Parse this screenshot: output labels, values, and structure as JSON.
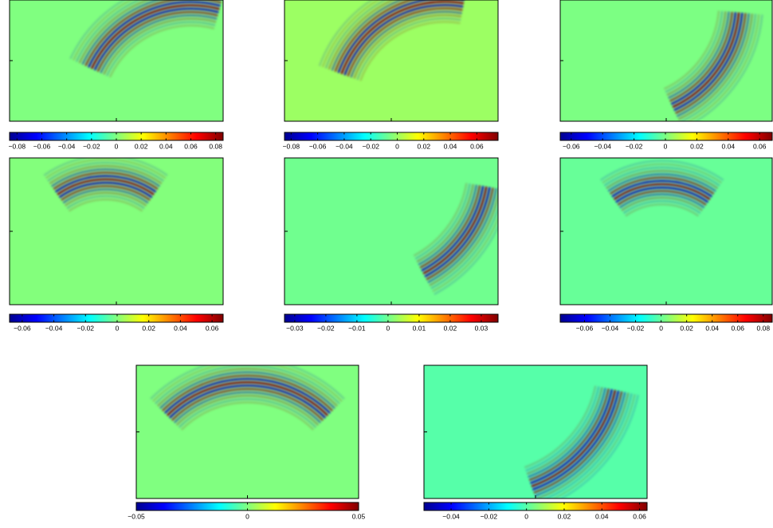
{
  "charts": [
    {
      "type": "heatmap",
      "clim": [
        -0.086,
        0.086
      ],
      "cticks": [
        {
          "value": -0.08,
          "label": "−0.08"
        },
        {
          "value": -0.06,
          "label": "−0.06"
        },
        {
          "value": -0.04,
          "label": "−0.04"
        },
        {
          "value": -0.02,
          "label": "−0.02"
        },
        0,
        0.02,
        0.04,
        0.06,
        0.08
      ]
    },
    {
      "type": "heatmap",
      "clim": [
        -0.085,
        0.076
      ],
      "cticks": [
        {
          "value": -0.08,
          "label": "−0.08"
        },
        {
          "value": -0.06,
          "label": "−0.06"
        },
        {
          "value": -0.04,
          "label": "−0.04"
        },
        {
          "value": -0.02,
          "label": "−0.02"
        },
        0,
        0.02,
        0.04,
        0.06
      ]
    },
    {
      "type": "heatmap",
      "clim": [
        -0.067,
        0.068
      ],
      "cticks": [
        {
          "value": -0.06,
          "label": "−0.06"
        },
        {
          "value": -0.04,
          "label": "−0.04"
        },
        {
          "value": -0.02,
          "label": "−0.02"
        },
        0,
        0.02,
        0.04,
        0.06
      ]
    },
    {
      "type": "heatmap",
      "clim": [
        -0.068,
        0.067
      ],
      "cticks": [
        {
          "value": -0.06,
          "label": "−0.06"
        },
        {
          "value": -0.04,
          "label": "−0.04"
        },
        {
          "value": -0.02,
          "label": "−0.02"
        },
        0,
        0.02,
        0.04,
        0.06
      ]
    },
    {
      "type": "heatmap",
      "clim": [
        -0.0333,
        0.0354
      ],
      "cticks": [
        {
          "value": -0.03,
          "label": "−0.03"
        },
        {
          "value": -0.02,
          "label": "−0.02"
        },
        {
          "value": -0.01,
          "label": "−0.01"
        },
        0,
        0.01,
        0.02,
        0.03
      ]
    },
    {
      "type": "heatmap",
      "clim": [
        -0.079,
        0.087
      ],
      "cticks": [
        {
          "value": -0.06,
          "label": "−0.06"
        },
        {
          "value": -0.04,
          "label": "−0.04"
        },
        {
          "value": -0.02,
          "label": "−0.02"
        },
        0,
        0.02,
        0.04,
        0.06,
        0.08
      ]
    },
    {
      "type": "heatmap",
      "clim": [
        -0.05,
        0.05
      ],
      "cticks": [
        {
          "value": -0.05,
          "label": "−0.05"
        },
        0,
        0.05
      ]
    },
    {
      "type": "heatmap",
      "clim": [
        -0.0544,
        0.064
      ],
      "cticks": [
        {
          "value": -0.04,
          "label": "−0.04"
        },
        {
          "value": -0.02,
          "label": "−0.02"
        },
        0,
        0.02,
        0.04,
        0.06
      ]
    }
  ]
}
